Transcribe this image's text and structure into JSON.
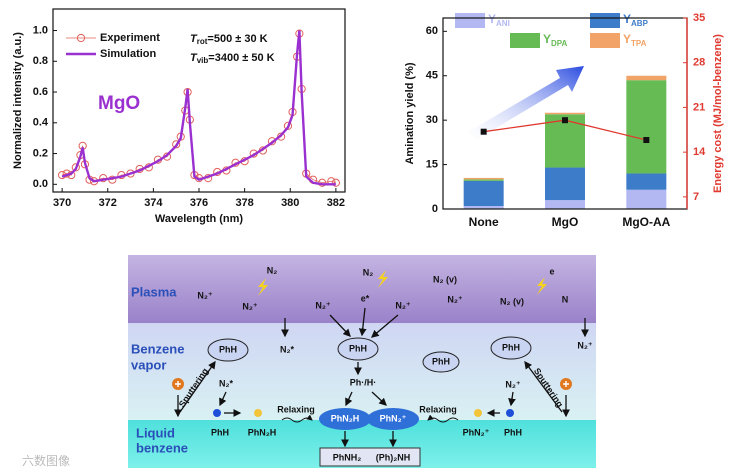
{
  "chart_data": [
    {
      "type": "line",
      "x_label": "Wavelength (nm)",
      "y_label": "Normalized intensity (a.u.)",
      "annotations": {
        "sample": "MgO",
        "t_rot": {
          "symbol": "T",
          "sub": "rot",
          "text": "=500 ± 30 K"
        },
        "t_vib": {
          "symbol": "T",
          "sub": "vib",
          "text": "=3400 ± 50 K"
        }
      },
      "x": [
        370.0,
        370.2,
        370.4,
        370.6,
        370.8,
        370.9,
        371.0,
        371.2,
        371.4,
        371.8,
        372.2,
        372.6,
        373.0,
        373.4,
        373.8,
        374.2,
        374.6,
        375.0,
        375.2,
        375.4,
        375.5,
        375.6,
        375.8,
        376.0,
        376.4,
        376.8,
        377.2,
        377.6,
        378.0,
        378.4,
        378.8,
        379.2,
        379.6,
        379.9,
        380.1,
        380.3,
        380.4,
        380.5,
        380.7,
        381.0,
        381.4,
        381.8,
        382.0
      ],
      "series": [
        {
          "name": "Experiment",
          "color": "#e0605a",
          "marker": "circle",
          "values": [
            0.06,
            0.07,
            0.06,
            0.11,
            0.19,
            0.25,
            0.13,
            0.03,
            0.02,
            0.04,
            0.03,
            0.06,
            0.07,
            0.1,
            0.11,
            0.16,
            0.18,
            0.26,
            0.31,
            0.48,
            0.6,
            0.42,
            0.06,
            0.04,
            0.04,
            0.08,
            0.09,
            0.14,
            0.15,
            0.2,
            0.22,
            0.28,
            0.31,
            0.38,
            0.47,
            0.83,
            0.98,
            0.62,
            0.07,
            0.03,
            0.01,
            0.02,
            0.01
          ]
        },
        {
          "name": "Simulation",
          "color": "#9b30d0",
          "marker": "none",
          "values": [
            0.05,
            0.06,
            0.07,
            0.1,
            0.18,
            0.24,
            0.14,
            0.04,
            0.02,
            0.03,
            0.04,
            0.05,
            0.07,
            0.09,
            0.12,
            0.15,
            0.19,
            0.25,
            0.3,
            0.5,
            0.62,
            0.4,
            0.05,
            0.03,
            0.05,
            0.07,
            0.1,
            0.13,
            0.16,
            0.19,
            0.23,
            0.27,
            0.32,
            0.37,
            0.45,
            0.85,
            1.0,
            0.6,
            0.05,
            0.01,
            0.0,
            0.0,
            0.0
          ]
        }
      ],
      "xlim": [
        369.6,
        382.4
      ],
      "xticks": [
        370,
        372,
        374,
        376,
        378,
        380,
        382
      ],
      "ylim": [
        -0.05,
        1.14
      ],
      "yticks": [
        {
          "value": 0,
          "label": "0.0"
        },
        0.2,
        0.4,
        0.6,
        0.8,
        {
          "value": 1,
          "label": "1.0"
        }
      ],
      "legend": "top-left"
    },
    {
      "type": "bar",
      "stacked": true,
      "y_label": "Amination yield (%)",
      "y2_label": "Energy cost (MJ/mol-benzene)",
      "categories": [
        "None",
        "MgO",
        "MgO-AA"
      ],
      "series": [
        {
          "name": "Y",
          "subscript": "ANI",
          "color": "#b3b8f2",
          "values": [
            1.0,
            3.0,
            6.5
          ]
        },
        {
          "name": "Y",
          "subscript": "ABP",
          "color": "#3d7cc9",
          "values": [
            8.5,
            11.0,
            5.5
          ]
        },
        {
          "name": "Y",
          "subscript": "DPA",
          "color": "#66bb55",
          "values": [
            0.5,
            18.0,
            31.5
          ]
        },
        {
          "name": "Y",
          "subscript": "TPA",
          "color": "#f2a368",
          "values": [
            0.5,
            0.5,
            1.5
          ]
        },
        {
          "type": "line",
          "axis": "y2",
          "color": "#e03a30",
          "values": [
            17.2,
            19.0,
            15.9
          ]
        }
      ],
      "ylim": [
        0,
        64.5
      ],
      "yticks": [
        0,
        15,
        30,
        45,
        60
      ],
      "y2lim": [
        5.1,
        35
      ],
      "y2ticks": [
        7,
        14,
        21,
        28,
        35
      ],
      "y2_color": "#e03a30"
    }
  ],
  "diagram": {
    "zones": [
      "Plasma",
      "Benzene",
      "vapor",
      "Liquid",
      "benzene"
    ],
    "labels": [
      "N₂",
      "N₂⁺",
      "N₂⁺",
      "N₂*",
      "N₂",
      "N₂⁺",
      "e*",
      "N₂⁺",
      "N₂ (v)",
      "N₂⁺",
      "N₂ (v)",
      "e",
      "N",
      "N₂⁺",
      "PhH",
      "PhH",
      "PhH",
      "PhH",
      "N₂*",
      "PhH",
      "PhN₂H",
      "Relaxing",
      "Relaxing",
      "PhN₂H",
      "PhN₂⁺",
      "Ph·/H·",
      "N₂⁺",
      "PhN₂⁺",
      "PhH",
      "PhNH₂",
      "(Ph)₂NH",
      "Sputtering",
      "Sputtering"
    ],
    "watermark": "六数图像"
  }
}
